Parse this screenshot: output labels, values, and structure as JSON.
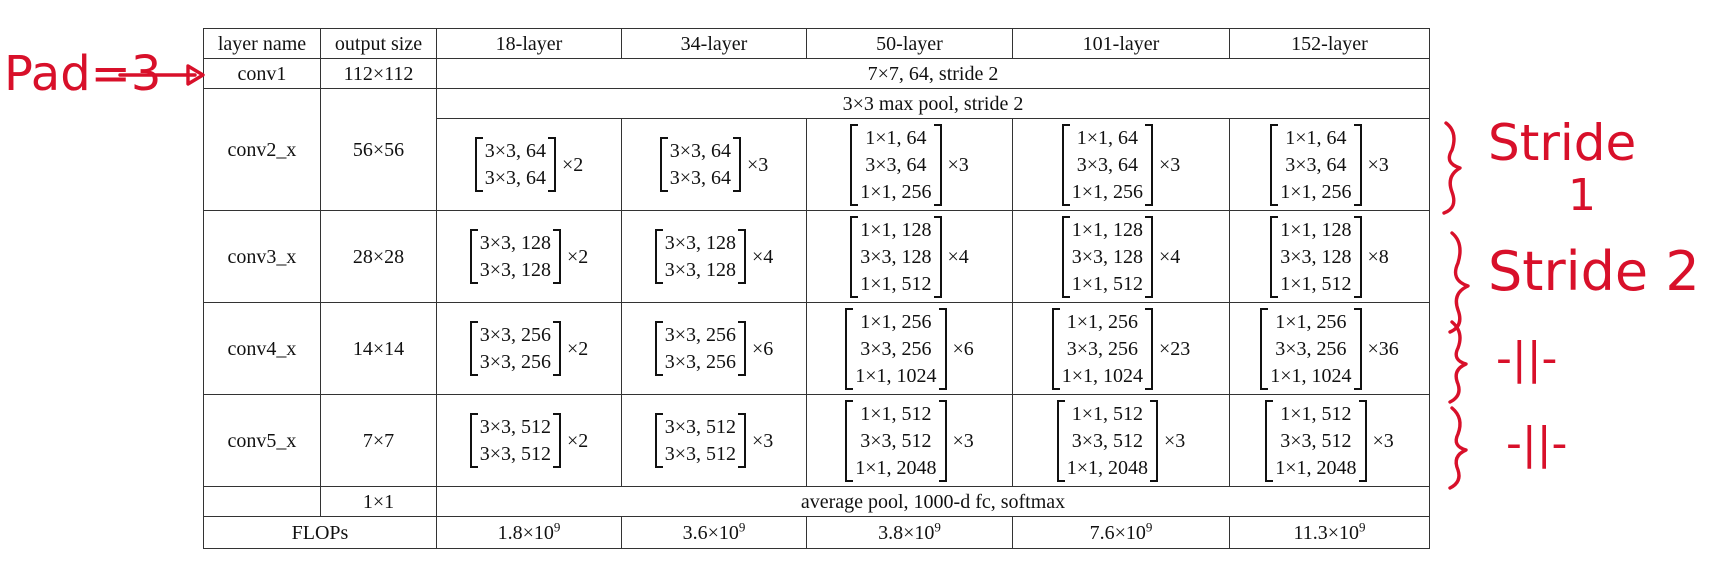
{
  "table": {
    "headers": [
      "layer name",
      "output size",
      "18-layer",
      "34-layer",
      "50-layer",
      "101-layer",
      "152-layer"
    ],
    "conv1": {
      "name": "conv1",
      "size": "112×112",
      "spec": "7×7, 64, stride 2"
    },
    "pool": {
      "spec": "3×3 max pool, stride 2"
    },
    "block_rows": [
      {
        "name": "conv2_x",
        "size": "56×56",
        "cells": [
          {
            "lines": [
              "3×3, 64",
              "3×3, 64"
            ],
            "mult": "×2"
          },
          {
            "lines": [
              "3×3, 64",
              "3×3, 64"
            ],
            "mult": "×3"
          },
          {
            "lines": [
              "1×1, 64",
              "3×3, 64",
              "1×1, 256"
            ],
            "mult": "×3"
          },
          {
            "lines": [
              "1×1, 64",
              "3×3, 64",
              "1×1, 256"
            ],
            "mult": "×3"
          },
          {
            "lines": [
              "1×1, 64",
              "3×3, 64",
              "1×1, 256"
            ],
            "mult": "×3"
          }
        ]
      },
      {
        "name": "conv3_x",
        "size": "28×28",
        "cells": [
          {
            "lines": [
              "3×3, 128",
              "3×3, 128"
            ],
            "mult": "×2"
          },
          {
            "lines": [
              "3×3, 128",
              "3×3, 128"
            ],
            "mult": "×4"
          },
          {
            "lines": [
              "1×1, 128",
              "3×3, 128",
              "1×1, 512"
            ],
            "mult": "×4"
          },
          {
            "lines": [
              "1×1, 128",
              "3×3, 128",
              "1×1, 512"
            ],
            "mult": "×4"
          },
          {
            "lines": [
              "1×1, 128",
              "3×3, 128",
              "1×1, 512"
            ],
            "mult": "×8"
          }
        ]
      },
      {
        "name": "conv4_x",
        "size": "14×14",
        "cells": [
          {
            "lines": [
              "3×3, 256",
              "3×3, 256"
            ],
            "mult": "×2"
          },
          {
            "lines": [
              "3×3, 256",
              "3×3, 256"
            ],
            "mult": "×6"
          },
          {
            "lines": [
              "1×1, 256",
              "3×3, 256",
              "1×1, 1024"
            ],
            "mult": "×6"
          },
          {
            "lines": [
              "1×1, 256",
              "3×3, 256",
              "1×1, 1024"
            ],
            "mult": "×23"
          },
          {
            "lines": [
              "1×1, 256",
              "3×3, 256",
              "1×1, 1024"
            ],
            "mult": "×36"
          }
        ]
      },
      {
        "name": "conv5_x",
        "size": "7×7",
        "cells": [
          {
            "lines": [
              "3×3, 512",
              "3×3, 512"
            ],
            "mult": "×2"
          },
          {
            "lines": [
              "3×3, 512",
              "3×3, 512"
            ],
            "mult": "×3"
          },
          {
            "lines": [
              "1×1, 512",
              "3×3, 512",
              "1×1, 2048"
            ],
            "mult": "×3"
          },
          {
            "lines": [
              "1×1, 512",
              "3×3, 512",
              "1×1, 2048"
            ],
            "mult": "×3"
          },
          {
            "lines": [
              "1×1, 512",
              "3×3, 512",
              "1×1, 2048"
            ],
            "mult": "×3"
          }
        ]
      }
    ],
    "final": {
      "size": "1×1",
      "spec": "average pool, 1000-d fc, softmax"
    },
    "flops": {
      "label": "FLOPs",
      "values": [
        {
          "base": "1.8×10",
          "exp": "9"
        },
        {
          "base": "3.6×10",
          "exp": "9"
        },
        {
          "base": "3.8×10",
          "exp": "9"
        },
        {
          "base": "7.6×10",
          "exp": "9"
        },
        {
          "base": "11.3×10",
          "exp": "9"
        }
      ]
    }
  },
  "annotations": {
    "pad": "Pad=3",
    "conv2_note": [
      "Stride",
      "1"
    ],
    "conv3_note": "Stride 2",
    "conv4_note": "-||-",
    "conv5_note": "-||-",
    "ink_color": "#d8102a"
  }
}
